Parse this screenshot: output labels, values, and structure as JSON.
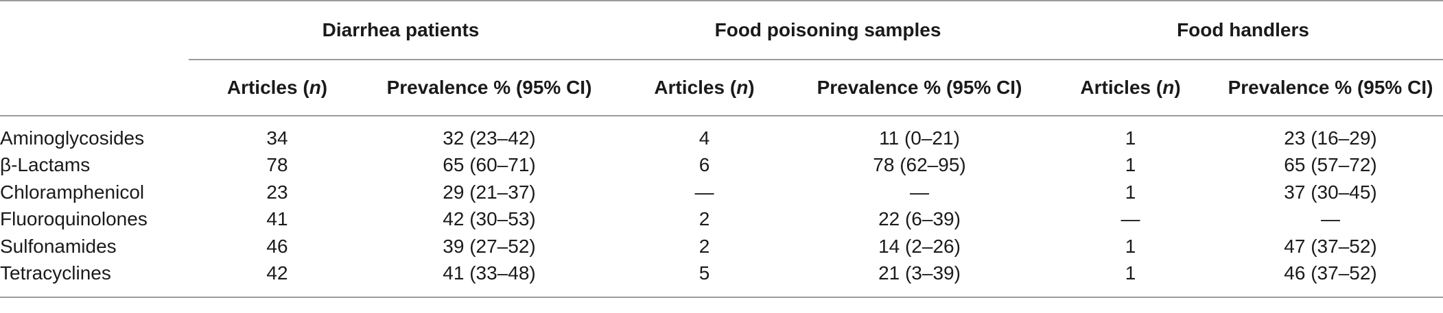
{
  "groups": [
    {
      "label": "Diarrhea patients"
    },
    {
      "label": "Food poisoning samples"
    },
    {
      "label": "Food handlers"
    }
  ],
  "subheaders": {
    "articles_prefix": "Articles (",
    "articles_n": "n",
    "articles_suffix": ")",
    "prevalence": "Prevalence % (95% CI)"
  },
  "rows": [
    {
      "label": "Aminoglycosides",
      "values": [
        "34",
        "32 (23–42)",
        "4",
        "11 (0–21)",
        "1",
        "23 (16–29)"
      ]
    },
    {
      "label": "β-Lactams",
      "values": [
        "78",
        "65 (60–71)",
        "6",
        "78 (62–95)",
        "1",
        "65 (57–72)"
      ]
    },
    {
      "label": "Chloramphenicol",
      "values": [
        "23",
        "29 (21–37)",
        "—",
        "—",
        "1",
        "37 (30–45)"
      ]
    },
    {
      "label": "Fluoroquinolones",
      "values": [
        "41",
        "42 (30–53)",
        "2",
        "22 (6–39)",
        "—",
        "—"
      ]
    },
    {
      "label": "Sulfonamides",
      "values": [
        "46",
        "39 (27–52)",
        "2",
        "14 (2–26)",
        "1",
        "47 (37–52)"
      ]
    },
    {
      "label": "Tetracyclines",
      "values": [
        "42",
        "41 (33–48)",
        "5",
        "21 (3–39)",
        "1",
        "46 (37–52)"
      ]
    }
  ]
}
